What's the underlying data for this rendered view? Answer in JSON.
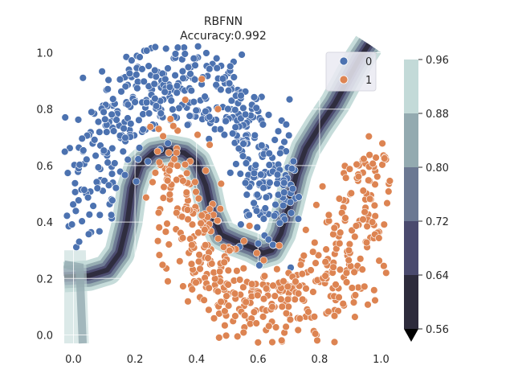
{
  "chart_data": {
    "type": "scatter",
    "title": "RBFNN",
    "subtitle": "Accuracy:0.992",
    "xlabel": "",
    "ylabel": "",
    "xlim": [
      -0.03,
      1.03
    ],
    "ylim": [
      -0.03,
      1.03
    ],
    "x_ticks": [
      "0.0",
      "0.2",
      "0.4",
      "0.6",
      "0.8",
      "1.0"
    ],
    "y_ticks": [
      "0.0",
      "0.2",
      "0.4",
      "0.6",
      "0.8",
      "1.0"
    ],
    "grid": true,
    "background": "decision-contour",
    "legend": {
      "placement": "top-right",
      "entries": [
        "0",
        "1"
      ]
    },
    "series": [
      {
        "name": "0",
        "color": "#4c72b0",
        "shape": "two-moons-upper",
        "approx_count": 500
      },
      {
        "name": "1",
        "color": "#dd8452",
        "shape": "two-moons-lower",
        "approx_count": 500
      }
    ],
    "colorbar": {
      "levels": [
        "0.56",
        "0.64",
        "0.72",
        "0.80",
        "0.88",
        "0.96"
      ],
      "colors": [
        "#2d2b3c",
        "#4a4a6e",
        "#6b7892",
        "#93aab0",
        "#c3dad8"
      ],
      "extend": "min"
    }
  }
}
